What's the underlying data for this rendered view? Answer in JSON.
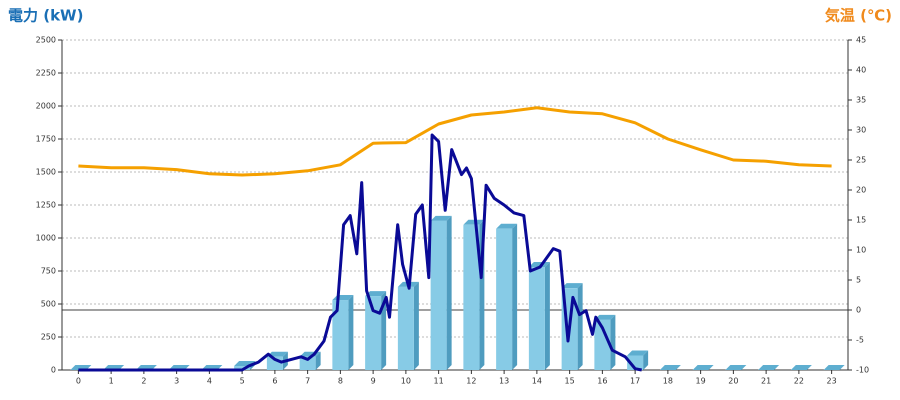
{
  "chart_data": {
    "type": "combo",
    "y_label": "電力 (kW)",
    "y2_label": "気温 (℃)",
    "categories": [
      0,
      1,
      2,
      3,
      4,
      5,
      6,
      7,
      8,
      9,
      10,
      11,
      12,
      13,
      14,
      15,
      16,
      17,
      18,
      19,
      20,
      21,
      22,
      23
    ],
    "xlim": [
      -0.5,
      23.5
    ],
    "ylim": [
      0,
      2500
    ],
    "yticks": [
      0,
      250,
      500,
      750,
      1000,
      1250,
      1500,
      1750,
      2000,
      2250,
      2500
    ],
    "y2lim": [
      -10,
      45
    ],
    "y2ticks": [
      -10,
      -5,
      0,
      5,
      10,
      15,
      20,
      25,
      30,
      35,
      40,
      45
    ],
    "grid": true,
    "series": [
      {
        "type": "bar",
        "color": "#87cbe6",
        "values": [
          0,
          0,
          0,
          0,
          0,
          30,
          100,
          100,
          530,
          560,
          630,
          1130,
          1100,
          1070,
          780,
          620,
          380,
          110,
          0,
          0,
          0,
          0,
          0,
          0
        ]
      },
      {
        "type": "line",
        "axis": "y2",
        "color": "#f5a000",
        "values": [
          24,
          23.7,
          23.7,
          23.4,
          22.7,
          22.5,
          22.7,
          23.2,
          24.2,
          27.8,
          27.9,
          31,
          32.5,
          33,
          33.7,
          33,
          32.7,
          31.2,
          28.5,
          26.7,
          25,
          24.8,
          24.2,
          24
        ]
      },
      {
        "type": "line",
        "color": "#0a0a96",
        "x": [
          0,
          5,
          5.2,
          5.5,
          5.8,
          6.0,
          6.2,
          6.5,
          6.8,
          7.0,
          7.2,
          7.5,
          7.7,
          7.9,
          8.1,
          8.3,
          8.5,
          8.65,
          8.8,
          9.0,
          9.2,
          9.4,
          9.5,
          9.75,
          9.9,
          10.1,
          10.3,
          10.5,
          10.7,
          10.8,
          11.0,
          11.2,
          11.4,
          11.7,
          11.85,
          12.0,
          12.3,
          12.45,
          12.7,
          13.0,
          13.3,
          13.6,
          13.8,
          14.1,
          14.5,
          14.7,
          14.95,
          15.1,
          15.3,
          15.5,
          15.7,
          15.8,
          16.0,
          16.3,
          16.7,
          17.0,
          17.2
        ],
        "values": [
          0,
          0,
          30,
          60,
          120,
          80,
          60,
          80,
          100,
          80,
          120,
          220,
          400,
          450,
          1100,
          1170,
          880,
          1420,
          600,
          450,
          430,
          550,
          400,
          1100,
          800,
          620,
          1180,
          1250,
          700,
          1780,
          1730,
          1210,
          1670,
          1480,
          1530,
          1450,
          700,
          1400,
          1300,
          1250,
          1190,
          1170,
          750,
          780,
          920,
          900,
          220,
          550,
          420,
          450,
          270,
          400,
          320,
          150,
          100,
          10,
          0
        ]
      }
    ]
  }
}
